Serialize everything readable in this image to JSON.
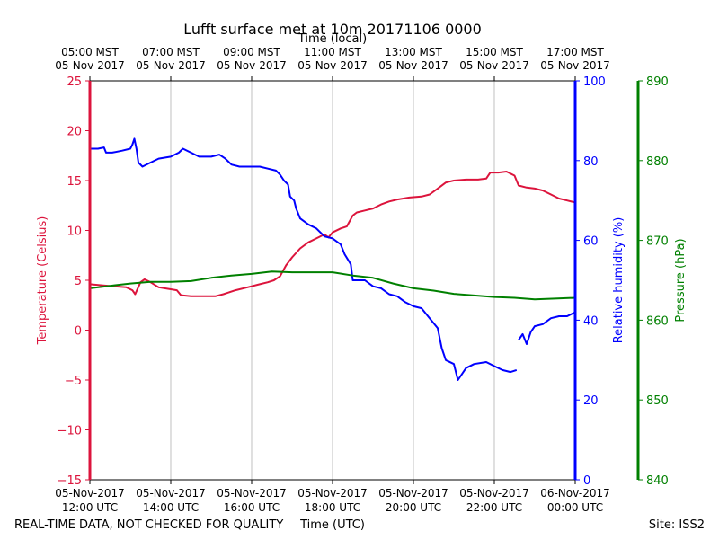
{
  "chart_data": {
    "type": "line",
    "title": "Lufft surface met at 10m 20171106 0000",
    "top_axis": {
      "label": "Time (local)",
      "ticks": [
        {
          "line1": "05:00 MST",
          "line2": "05-Nov-2017"
        },
        {
          "line1": "07:00 MST",
          "line2": "05-Nov-2017"
        },
        {
          "line1": "09:00 MST",
          "line2": "05-Nov-2017"
        },
        {
          "line1": "11:00 MST",
          "line2": "05-Nov-2017"
        },
        {
          "line1": "13:00 MST",
          "line2": "05-Nov-2017"
        },
        {
          "line1": "15:00 MST",
          "line2": "05-Nov-2017"
        },
        {
          "line1": "17:00 MST",
          "line2": "05-Nov-2017"
        }
      ]
    },
    "bottom_axis": {
      "label": "Time (UTC)",
      "range_hours": [
        12,
        24
      ],
      "ticks": [
        {
          "line1": "05-Nov-2017",
          "line2": "12:00 UTC"
        },
        {
          "line1": "05-Nov-2017",
          "line2": "14:00 UTC"
        },
        {
          "line1": "05-Nov-2017",
          "line2": "16:00 UTC"
        },
        {
          "line1": "05-Nov-2017",
          "line2": "18:00 UTC"
        },
        {
          "line1": "05-Nov-2017",
          "line2": "20:00 UTC"
        },
        {
          "line1": "05-Nov-2017",
          "line2": "22:00 UTC"
        },
        {
          "line1": "06-Nov-2017",
          "line2": "00:00 UTC"
        }
      ]
    },
    "left_axis": {
      "label": "Temperature (Celsius)",
      "ylim": [
        -15,
        25
      ],
      "ticks": [
        "−15",
        "−10",
        "−5",
        "0",
        "5",
        "10",
        "15",
        "20",
        "25"
      ],
      "color": "#dc143c"
    },
    "right_axis": {
      "label": "Relative humidity (%)",
      "ylim": [
        0,
        100
      ],
      "ticks": [
        "0",
        "20",
        "40",
        "60",
        "80",
        "100"
      ],
      "color": "#0000ff"
    },
    "pressure_axis": {
      "label": "Pressure (hPa)",
      "ylim": [
        840,
        890
      ],
      "ticks": [
        "840",
        "850",
        "860",
        "870",
        "880",
        "890"
      ],
      "color": "#008000"
    },
    "series": [
      {
        "name": "Temperature",
        "axis": "left",
        "color": "#dc143c",
        "points": [
          [
            12.0,
            4.6
          ],
          [
            12.3,
            4.5
          ],
          [
            12.6,
            4.4
          ],
          [
            12.9,
            4.3
          ],
          [
            13.05,
            4.0
          ],
          [
            13.12,
            3.6
          ],
          [
            13.25,
            4.8
          ],
          [
            13.35,
            5.1
          ],
          [
            13.5,
            4.8
          ],
          [
            13.7,
            4.3
          ],
          [
            14.0,
            4.1
          ],
          [
            14.15,
            4.0
          ],
          [
            14.25,
            3.5
          ],
          [
            14.5,
            3.4
          ],
          [
            14.8,
            3.4
          ],
          [
            15.1,
            3.4
          ],
          [
            15.3,
            3.6
          ],
          [
            15.6,
            4.0
          ],
          [
            15.9,
            4.3
          ],
          [
            16.2,
            4.6
          ],
          [
            16.4,
            4.8
          ],
          [
            16.55,
            5.0
          ],
          [
            16.7,
            5.4
          ],
          [
            16.85,
            6.5
          ],
          [
            17.0,
            7.3
          ],
          [
            17.2,
            8.2
          ],
          [
            17.4,
            8.8
          ],
          [
            17.6,
            9.2
          ],
          [
            17.8,
            9.6
          ],
          [
            17.9,
            9.3
          ],
          [
            18.0,
            9.8
          ],
          [
            18.2,
            10.2
          ],
          [
            18.35,
            10.4
          ],
          [
            18.5,
            11.5
          ],
          [
            18.6,
            11.8
          ],
          [
            18.8,
            12.0
          ],
          [
            19.0,
            12.2
          ],
          [
            19.2,
            12.6
          ],
          [
            19.4,
            12.9
          ],
          [
            19.6,
            13.1
          ],
          [
            19.9,
            13.3
          ],
          [
            20.2,
            13.4
          ],
          [
            20.4,
            13.6
          ],
          [
            20.6,
            14.2
          ],
          [
            20.8,
            14.8
          ],
          [
            21.0,
            15.0
          ],
          [
            21.3,
            15.1
          ],
          [
            21.6,
            15.1
          ],
          [
            21.8,
            15.2
          ],
          [
            21.9,
            15.8
          ],
          [
            22.1,
            15.8
          ],
          [
            22.3,
            15.9
          ],
          [
            22.5,
            15.5
          ],
          [
            22.6,
            14.5
          ],
          [
            22.8,
            14.3
          ],
          [
            23.0,
            14.2
          ],
          [
            23.2,
            14.0
          ],
          [
            23.4,
            13.6
          ],
          [
            23.6,
            13.2
          ],
          [
            23.8,
            13.0
          ],
          [
            24.0,
            12.8
          ]
        ]
      },
      {
        "name": "Relative humidity",
        "axis": "right",
        "color": "#0000ff",
        "points": [
          [
            12.0,
            83.0
          ],
          [
            12.2,
            83.0
          ],
          [
            12.35,
            83.3
          ],
          [
            12.4,
            82.0
          ],
          [
            12.55,
            82.0
          ],
          [
            12.8,
            82.5
          ],
          [
            13.0,
            83.0
          ],
          [
            13.05,
            84.0
          ],
          [
            13.1,
            85.5
          ],
          [
            13.15,
            83.0
          ],
          [
            13.2,
            79.5
          ],
          [
            13.3,
            78.5
          ],
          [
            13.5,
            79.5
          ],
          [
            13.7,
            80.5
          ],
          [
            14.0,
            81.0
          ],
          [
            14.2,
            82.0
          ],
          [
            14.3,
            83.0
          ],
          [
            14.5,
            82.0
          ],
          [
            14.7,
            81.0
          ],
          [
            15.0,
            81.0
          ],
          [
            15.2,
            81.5
          ],
          [
            15.35,
            80.5
          ],
          [
            15.5,
            79.0
          ],
          [
            15.7,
            78.5
          ],
          [
            16.0,
            78.5
          ],
          [
            16.2,
            78.5
          ],
          [
            16.4,
            78.0
          ],
          [
            16.6,
            77.5
          ],
          [
            16.7,
            76.5
          ],
          [
            16.8,
            75.0
          ],
          [
            16.9,
            74.0
          ],
          [
            16.95,
            71.0
          ],
          [
            17.05,
            70.0
          ],
          [
            17.1,
            68.0
          ],
          [
            17.2,
            65.5
          ],
          [
            17.4,
            64.0
          ],
          [
            17.6,
            63.0
          ],
          [
            17.8,
            61.0
          ],
          [
            18.0,
            60.5
          ],
          [
            18.2,
            59.0
          ],
          [
            18.3,
            56.5
          ],
          [
            18.45,
            54.0
          ],
          [
            18.5,
            50.0
          ],
          [
            18.8,
            50.0
          ],
          [
            19.0,
            48.5
          ],
          [
            19.2,
            48.0
          ],
          [
            19.4,
            46.5
          ],
          [
            19.6,
            46.0
          ],
          [
            19.8,
            44.5
          ],
          [
            20.0,
            43.5
          ],
          [
            20.2,
            43.0
          ],
          [
            20.4,
            40.5
          ],
          [
            20.6,
            38.0
          ],
          [
            20.7,
            33.0
          ],
          [
            20.8,
            30.0
          ],
          [
            21.0,
            29.0
          ],
          [
            21.1,
            25.0
          ],
          [
            21.3,
            28.0
          ],
          [
            21.5,
            29.0
          ],
          [
            21.8,
            29.5
          ],
          [
            22.0,
            28.5
          ],
          [
            22.2,
            27.5
          ],
          [
            22.4,
            27.0
          ],
          [
            22.55,
            27.5
          ]
        ]
      },
      {
        "name": "Relative humidity",
        "axis": "right",
        "color": "#0000ff",
        "points": [
          [
            22.6,
            35.0
          ],
          [
            22.7,
            36.5
          ],
          [
            22.8,
            34.0
          ],
          [
            22.9,
            37.0
          ],
          [
            23.0,
            38.5
          ],
          [
            23.2,
            39.0
          ],
          [
            23.4,
            40.5
          ],
          [
            23.6,
            41.0
          ],
          [
            23.8,
            41.0
          ],
          [
            24.0,
            42.0
          ]
        ]
      },
      {
        "name": "Pressure",
        "axis": "pressure",
        "color": "#008000",
        "points": [
          [
            12.0,
            864.0
          ],
          [
            12.5,
            864.3
          ],
          [
            13.0,
            864.6
          ],
          [
            13.5,
            864.8
          ],
          [
            14.0,
            864.8
          ],
          [
            14.5,
            864.9
          ],
          [
            15.0,
            865.3
          ],
          [
            15.5,
            865.6
          ],
          [
            16.0,
            865.8
          ],
          [
            16.5,
            866.1
          ],
          [
            17.0,
            866.0
          ],
          [
            17.5,
            866.0
          ],
          [
            18.0,
            866.0
          ],
          [
            18.5,
            865.6
          ],
          [
            19.0,
            865.3
          ],
          [
            19.5,
            864.6
          ],
          [
            20.0,
            864.0
          ],
          [
            20.5,
            863.7
          ],
          [
            21.0,
            863.3
          ],
          [
            21.5,
            863.1
          ],
          [
            22.0,
            862.9
          ],
          [
            22.5,
            862.8
          ],
          [
            23.0,
            862.6
          ],
          [
            23.5,
            862.7
          ],
          [
            24.0,
            862.8
          ]
        ]
      }
    ]
  },
  "footer": {
    "left_note": "REAL-TIME DATA, NOT CHECKED FOR QUALITY",
    "site": "Site: ISS2"
  }
}
